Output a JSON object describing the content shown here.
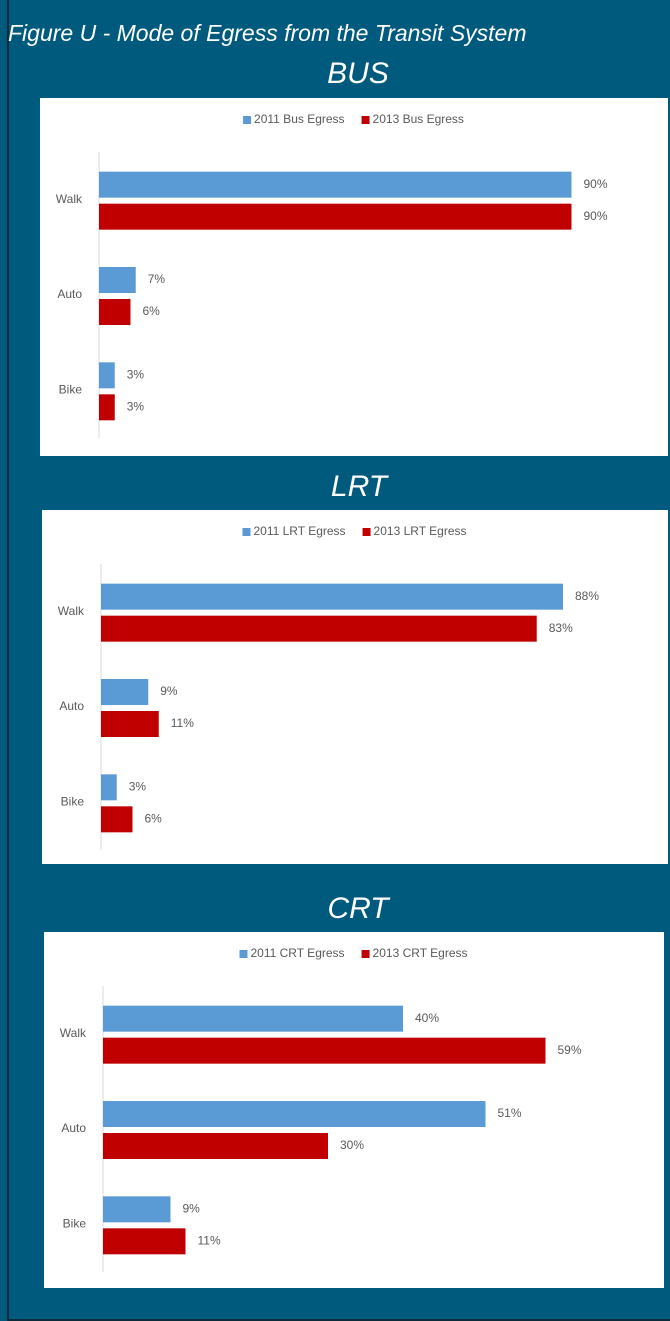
{
  "title": "Figure U - Mode of Egress from the Transit System",
  "chart_data": [
    {
      "type": "bar",
      "orientation": "horizontal",
      "title": "BUS",
      "legend": "top",
      "categories": [
        "Walk",
        "Auto",
        "Bike"
      ],
      "series": [
        {
          "name": "2011 Bus Egress",
          "color": "#5b9bd5",
          "values": [
            90,
            7,
            3
          ],
          "value_labels": [
            "90%",
            "7%",
            "3%"
          ]
        },
        {
          "name": "2013 Bus Egress",
          "color": "#c00000",
          "values": [
            90,
            6,
            3
          ],
          "value_labels": [
            "90%",
            "6%",
            "3%"
          ]
        }
      ],
      "xlim": [
        0,
        100
      ]
    },
    {
      "type": "bar",
      "orientation": "horizontal",
      "title": "LRT",
      "legend": "top",
      "categories": [
        "Walk",
        "Auto",
        "Bike"
      ],
      "series": [
        {
          "name": "2011 LRT Egress",
          "color": "#5b9bd5",
          "values": [
            88,
            9,
            3
          ],
          "value_labels": [
            "88%",
            "9%",
            "3%"
          ]
        },
        {
          "name": "2013 LRT Egress",
          "color": "#c00000",
          "values": [
            83,
            11,
            6
          ],
          "value_labels": [
            "83%",
            "11%",
            "6%"
          ]
        }
      ],
      "xlim": [
        0,
        100
      ]
    },
    {
      "type": "bar",
      "orientation": "horizontal",
      "title": "CRT",
      "legend": "top",
      "categories": [
        "Walk",
        "Auto",
        "Bike"
      ],
      "series": [
        {
          "name": "2011 CRT Egress",
          "color": "#5b9bd5",
          "values": [
            40,
            51,
            9
          ],
          "value_labels": [
            "40%",
            "51%",
            "9%"
          ]
        },
        {
          "name": "2013 CRT Egress",
          "color": "#c00000",
          "values": [
            59,
            30,
            11
          ],
          "value_labels": [
            "59%",
            "30%",
            "11%"
          ]
        }
      ],
      "xlim": [
        0,
        70
      ]
    }
  ]
}
